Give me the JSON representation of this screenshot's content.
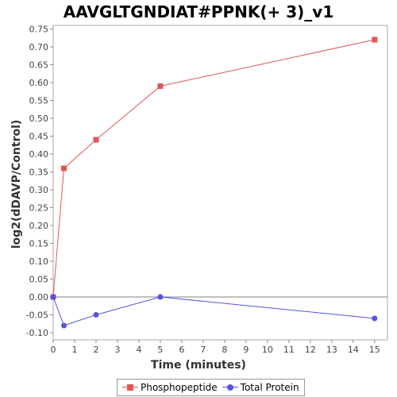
{
  "chart_data": {
    "type": "line",
    "title": "AAVGLTGNDIAT#PPNK(+ 3)_v1",
    "xlabel": "Time (minutes)",
    "ylabel": "log2(dDAVP/Control)",
    "xlim": [
      0,
      15.6
    ],
    "ylim": [
      -0.12,
      0.76
    ],
    "xticks": [
      0,
      1,
      2,
      3,
      4,
      5,
      6,
      7,
      8,
      9,
      10,
      11,
      12,
      13,
      14,
      15
    ],
    "yticks": [
      "-0.10",
      "-0.05",
      "0.00",
      "0.05",
      "0.10",
      "0.15",
      "0.20",
      "0.25",
      "0.30",
      "0.35",
      "0.40",
      "0.45",
      "0.50",
      "0.55",
      "0.60",
      "0.65",
      "0.70",
      "0.75"
    ],
    "grid": false,
    "legend_position": "bottom",
    "series": [
      {
        "name": "Phosphopeptide",
        "color": "#e05555",
        "marker": "square",
        "x": [
          0,
          0.5,
          2,
          5,
          15
        ],
        "y": [
          0.0,
          0.36,
          0.44,
          0.59,
          0.72
        ]
      },
      {
        "name": "Total Protein",
        "color": "#5555e0",
        "marker": "circle",
        "x": [
          0,
          0.5,
          2,
          5,
          15
        ],
        "y": [
          0.0,
          -0.08,
          -0.05,
          0.0,
          -0.06
        ]
      }
    ]
  }
}
